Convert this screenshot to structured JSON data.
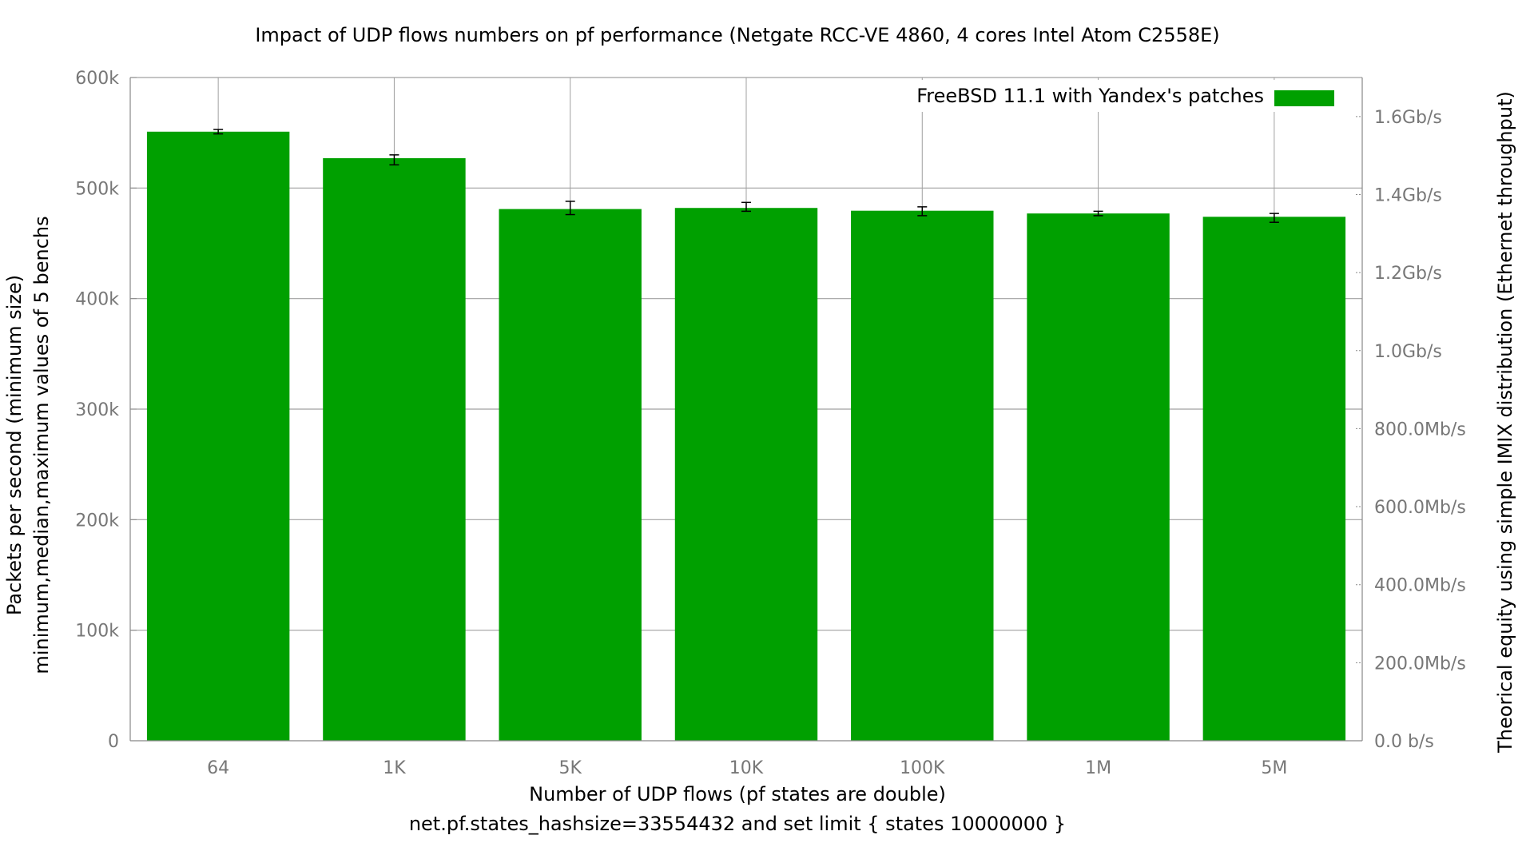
{
  "chart_data": {
    "type": "bar",
    "title": "Impact of UDP flows numbers on pf performance (Netgate RCC-VE 4860, 4 cores Intel Atom C2558E)",
    "xlabel_line1": "Number of UDP flows (pf states are double)",
    "xlabel_line2": "net.pf.states_hashsize=33554432 and set limit { states 10000000 }",
    "ylabel_line1": "Packets per second (minimum size)",
    "ylabel_line2": "minimum,median,maximum values of 5 benchs",
    "y2label": "Theorical equity using simple IMIX distribution (Ethernet throughput)",
    "categories": [
      "64",
      "1K",
      "5K",
      "10K",
      "100K",
      "1M",
      "5M"
    ],
    "series": [
      {
        "name": "FreeBSD 11.1 with Yandex's patches",
        "color": "#00a000",
        "values": [
          551000,
          527000,
          481000,
          482000,
          479500,
          477000,
          474000
        ],
        "min": [
          549000,
          521000,
          476000,
          479000,
          475000,
          475000,
          469000
        ],
        "max": [
          553000,
          530000,
          488000,
          487000,
          483000,
          479000,
          477000
        ]
      }
    ],
    "ylim": [
      0,
      600000
    ],
    "yticks": [
      {
        "value": 0,
        "label": "0"
      },
      {
        "value": 100000,
        "label": "100k"
      },
      {
        "value": 200000,
        "label": "200k"
      },
      {
        "value": 300000,
        "label": "300k"
      },
      {
        "value": 400000,
        "label": "400k"
      },
      {
        "value": 500000,
        "label": "500k"
      },
      {
        "value": 600000,
        "label": "600k"
      }
    ],
    "y2ticks": [
      {
        "value": 0,
        "label": "0.0 b/s"
      },
      {
        "value": 200000000,
        "label": "200.0Mb/s"
      },
      {
        "value": 400000000,
        "label": "400.0Mb/s"
      },
      {
        "value": 600000000,
        "label": "600.0Mb/s"
      },
      {
        "value": 800000000,
        "label": "800.0Mb/s"
      },
      {
        "value": 1000000000,
        "label": "1.0Gb/s"
      },
      {
        "value": 1200000000,
        "label": "1.2Gb/s"
      },
      {
        "value": 1400000000,
        "label": "1.4Gb/s"
      },
      {
        "value": 1600000000,
        "label": "1.6Gb/s"
      }
    ],
    "y2lim": [
      0,
      1700000000
    ],
    "legend_position": "top-right",
    "grid": true
  }
}
